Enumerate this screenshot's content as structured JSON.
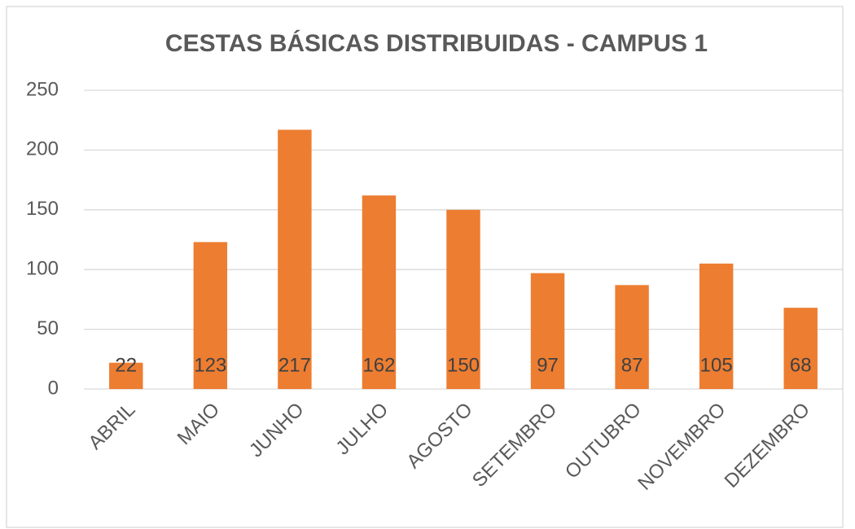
{
  "chart_data": {
    "type": "bar",
    "title": "CESTAS BÁSICAS DISTRIBUIDAS - CAMPUS 1",
    "categories": [
      "ABRIL",
      "MAIO",
      "JUNHO",
      "JULHO",
      "AGOSTO",
      "SETEMBRO",
      "OUTUBRO",
      "NOVEMBRO",
      "DEZEMBRO"
    ],
    "values": [
      22,
      123,
      217,
      162,
      150,
      97,
      87,
      105,
      68
    ],
    "color": "#ed7d31",
    "ylim": [
      0,
      250
    ],
    "yticks": [
      0,
      50,
      100,
      150,
      200,
      250
    ],
    "grid": true
  }
}
